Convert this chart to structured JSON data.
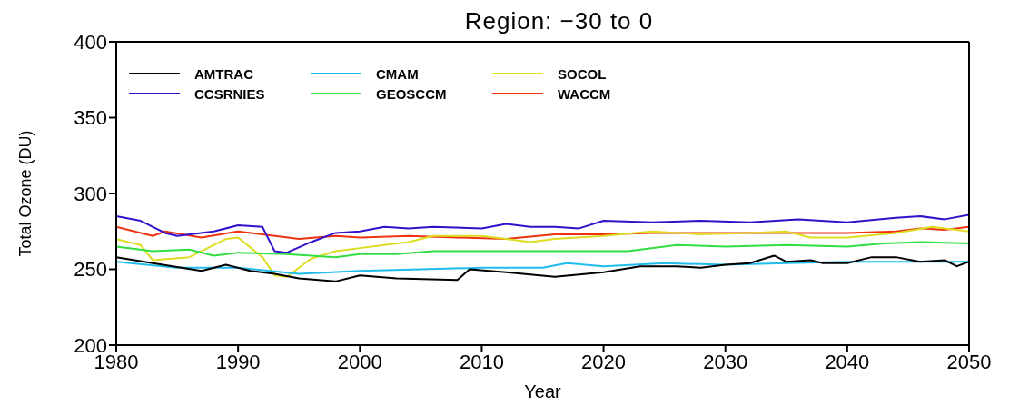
{
  "chart_data": {
    "type": "line",
    "title": "Region: −30 to 0",
    "xlabel": "Year",
    "ylabel": "Total Ozone (DU)",
    "xlim": [
      1980,
      2050
    ],
    "xticks": [
      1980,
      1990,
      2000,
      2010,
      2020,
      2030,
      2040,
      2050
    ],
    "ylim": [
      200,
      400
    ],
    "yticks": [
      200,
      250,
      300,
      350,
      400
    ],
    "legend": "top left",
    "marker": "none",
    "line_style": "solid",
    "series": [
      {
        "name": "AMTRAC",
        "color": "#000000",
        "x": [
          1980,
          1983,
          1987,
          1989,
          1991,
          1993,
          1995,
          1998,
          2000,
          2003,
          2008,
          2009,
          2012,
          2016,
          2020,
          2023,
          2026,
          2028,
          2030,
          2032,
          2034,
          2035,
          2037,
          2038,
          2040,
          2042,
          2044,
          2046,
          2048,
          2049,
          2050
        ],
        "values": [
          258,
          254,
          249,
          253,
          249,
          247,
          244,
          242,
          246,
          244,
          243,
          250,
          248,
          245,
          248,
          252,
          252,
          251,
          253,
          254,
          259,
          255,
          256,
          254,
          254,
          258,
          258,
          255,
          256,
          252,
          255
        ]
      },
      {
        "name": "CCSRNIES",
        "color": "#3311cc",
        "x": [
          1980,
          1982,
          1984,
          1985,
          1988,
          1990,
          1992,
          1993,
          1994,
          1996,
          1998,
          2000,
          2002,
          2004,
          2006,
          2010,
          2012,
          2014,
          2016,
          2018,
          2020,
          2024,
          2028,
          2032,
          2036,
          2040,
          2044,
          2046,
          2048,
          2050
        ],
        "values": [
          285,
          282,
          274,
          272,
          275,
          279,
          278,
          262,
          261,
          268,
          274,
          275,
          278,
          277,
          278,
          277,
          280,
          278,
          278,
          277,
          282,
          281,
          282,
          281,
          283,
          281,
          284,
          285,
          283,
          286
        ]
      },
      {
        "name": "CMAM",
        "color": "#22bbee",
        "x": [
          1980,
          1985,
          1990,
          1995,
          2000,
          2005,
          2010,
          2015,
          2017,
          2020,
          2025,
          2030,
          2035,
          2040,
          2045,
          2050
        ],
        "values": [
          255,
          251,
          251,
          247,
          249,
          250,
          251,
          251,
          254,
          252,
          254,
          253,
          254,
          255,
          255,
          255
        ]
      },
      {
        "name": "GEOSCCM",
        "color": "#33dd44",
        "x": [
          1980,
          1983,
          1986,
          1988,
          1990,
          1994,
          1998,
          2000,
          2003,
          2006,
          2010,
          2014,
          2018,
          2022,
          2026,
          2030,
          2035,
          2040,
          2043,
          2046,
          2050
        ],
        "values": [
          265,
          262,
          263,
          259,
          261,
          260,
          258,
          260,
          260,
          262,
          262,
          262,
          262,
          262,
          266,
          265,
          266,
          265,
          267,
          268,
          267
        ]
      },
      {
        "name": "SOCOL",
        "color": "#dddd22",
        "x": [
          1980,
          1982,
          1983,
          1986,
          1989,
          1990,
          1992,
          1993,
          1994,
          1996,
          1998,
          2000,
          2002,
          2004,
          2006,
          2010,
          2012,
          2014,
          2016,
          2020,
          2024,
          2028,
          2032,
          2035,
          2037,
          2040,
          2044,
          2047,
          2050
        ],
        "values": [
          270,
          266,
          256,
          258,
          270,
          271,
          258,
          246,
          245,
          257,
          262,
          264,
          266,
          268,
          272,
          272,
          270,
          268,
          270,
          272,
          275,
          273,
          274,
          275,
          271,
          271,
          274,
          278,
          275
        ]
      },
      {
        "name": "WACCM",
        "color": "#ee3311",
        "x": [
          1980,
          1983,
          1984,
          1987,
          1990,
          1992,
          1995,
          1998,
          2000,
          2004,
          2008,
          2012,
          2016,
          2020,
          2024,
          2028,
          2032,
          2036,
          2040,
          2044,
          2046,
          2048,
          2050
        ],
        "values": [
          278,
          272,
          275,
          271,
          275,
          273,
          270,
          272,
          271,
          272,
          271,
          270,
          273,
          273,
          274,
          274,
          274,
          274,
          274,
          275,
          277,
          276,
          278
        ]
      }
    ]
  }
}
